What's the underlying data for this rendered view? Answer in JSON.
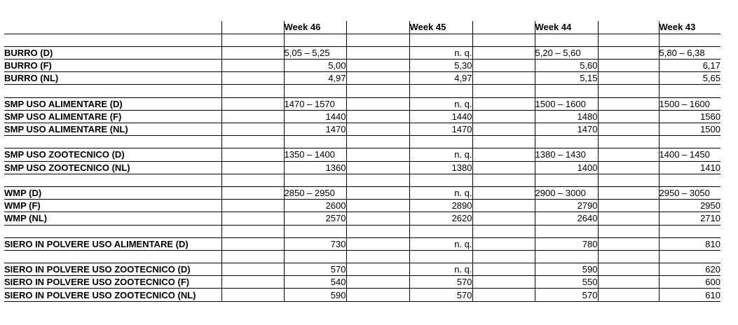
{
  "table": {
    "header": [
      "Week 46",
      "Week 45",
      "Week 44",
      "Week 43"
    ],
    "not_quoted_label": "n. q.",
    "rows": [
      {
        "label": "",
        "values": [
          "",
          "",
          "",
          ""
        ]
      },
      {
        "label": "BURRO (D)",
        "values": [
          "5,05 – 5,25",
          "n. q.",
          "5,20 – 5,60",
          "5,80 – 6,38"
        ]
      },
      {
        "label": "BURRO (F)",
        "values": [
          "5,00",
          "5,30",
          "5,60",
          "6,17"
        ]
      },
      {
        "label": "BURRO (NL)",
        "values": [
          "4,97",
          "4,97",
          "5,15",
          "5,65"
        ]
      },
      {
        "label": "",
        "values": [
          "",
          "",
          "",
          ""
        ]
      },
      {
        "label": "SMP USO ALIMENTARE (D)",
        "values": [
          "1470 – 1570",
          "n. q.",
          "1500 – 1600",
          "1500 – 1600"
        ]
      },
      {
        "label": "SMP USO ALIMENTARE (F)",
        "values": [
          "1440",
          "1440",
          "1480",
          "1560"
        ]
      },
      {
        "label": "SMP USO ALIMENTARE (NL)",
        "values": [
          "1470",
          "1470",
          "1470",
          "1500"
        ]
      },
      {
        "label": "",
        "values": [
          "",
          "",
          "",
          ""
        ]
      },
      {
        "label": "SMP USO ZOOTECNICO (D)",
        "values": [
          "1350 – 1400",
          "n. q.",
          "1380 – 1430",
          "1400 – 1450"
        ]
      },
      {
        "label": "SMP USO ZOOTECNICO (NL)",
        "values": [
          "1360",
          "1380",
          "1400",
          "1410"
        ]
      },
      {
        "label": "",
        "values": [
          "",
          "",
          "",
          ""
        ]
      },
      {
        "label": "WMP (D)",
        "values": [
          "2850 – 2950",
          "n. q.",
          "2900 – 3000",
          "2950 – 3050"
        ]
      },
      {
        "label": "WMP (F)",
        "values": [
          "2600",
          "2890",
          "2790",
          "2950"
        ]
      },
      {
        "label": "WMP (NL)",
        "values": [
          "2570",
          "2620",
          "2640",
          "2710"
        ]
      },
      {
        "label": "",
        "values": [
          "",
          "",
          "",
          ""
        ]
      },
      {
        "label": "SIERO IN POLVERE USO ALIMENTARE (D)",
        "values": [
          "730",
          "n. q.",
          "780",
          "810"
        ]
      },
      {
        "label": "",
        "values": [
          "",
          "",
          "",
          ""
        ]
      },
      {
        "label": "SIERO IN POLVERE USO ZOOTECNICO (D)",
        "values": [
          "570",
          "n. q.",
          "590",
          "620"
        ]
      },
      {
        "label": "SIERO IN POLVERE USO ZOOTECNICO (F)",
        "values": [
          "540",
          "570",
          "550",
          "600"
        ]
      },
      {
        "label": "SIERO IN POLVERE USO ZOOTECNICO (NL)",
        "values": [
          "590",
          "570",
          "570",
          "610"
        ]
      }
    ]
  }
}
